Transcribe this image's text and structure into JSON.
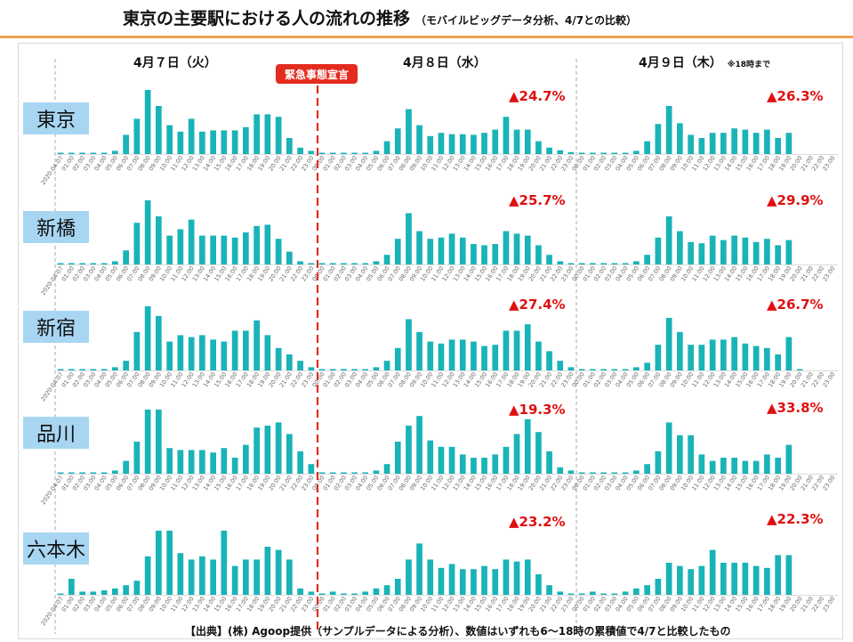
{
  "header": {
    "title": "東京の主要駅における人の流れの推移",
    "subtitle": "（モバイルビッグデータ分析、4/7との比較）"
  },
  "days": [
    {
      "label": "4月７日（火）",
      "note": ""
    },
    {
      "label": "4月８日（水）",
      "note": ""
    },
    {
      "label": "4月９日（木）",
      "note": "※18時まで"
    }
  ],
  "emergency_label": "緊急事態宣言",
  "source": "【出典】(株) Agoop提供（サンプルデータによる分析）、数値はいずれも6～18時の累積値で4/7と比較したもの",
  "colors": {
    "bar": "#19b3b8",
    "accent": "#e32b1e",
    "station_bg": "#a8d6f2"
  },
  "chart_data": {
    "type": "bar",
    "hours": [
      "00:00",
      "01:00",
      "02:00",
      "03:00",
      "04:00",
      "05:00",
      "06:00",
      "07:00",
      "08:00",
      "09:00",
      "10:00",
      "11:00",
      "12:00",
      "13:00",
      "14:00",
      "15:00",
      "16:00",
      "17:00",
      "18:00",
      "19:00",
      "20:00",
      "21:00",
      "22:00",
      "23:00"
    ],
    "first_tick": "2020-04-07",
    "stations": [
      {
        "name": "東京",
        "changes": [
          "",
          "▲24.7%",
          "▲26.3%"
        ],
        "series": [
          [
            1,
            1,
            1,
            1,
            2,
            5,
            30,
            55,
            100,
            75,
            45,
            35,
            55,
            35,
            37,
            37,
            37,
            42,
            62,
            62,
            58,
            25,
            10,
            5
          ],
          [
            1,
            1,
            1,
            1,
            2,
            5,
            20,
            40,
            70,
            45,
            28,
            33,
            31,
            31,
            30,
            33,
            38,
            58,
            38,
            38,
            20,
            10,
            6,
            3
          ],
          [
            1,
            1,
            1,
            1,
            2,
            5,
            20,
            47,
            75,
            48,
            30,
            25,
            33,
            33,
            40,
            38,
            33,
            38,
            25,
            33,
            null,
            null,
            null,
            null
          ]
        ]
      },
      {
        "name": "新橋",
        "changes": [
          "",
          "▲25.7%",
          "▲29.9%"
        ],
        "series": [
          [
            1,
            1,
            1,
            1,
            2,
            5,
            22,
            65,
            100,
            75,
            45,
            55,
            70,
            45,
            45,
            45,
            42,
            50,
            60,
            62,
            40,
            20,
            5,
            2
          ],
          [
            1,
            1,
            1,
            1,
            2,
            5,
            15,
            40,
            80,
            52,
            40,
            42,
            48,
            42,
            32,
            30,
            32,
            52,
            48,
            45,
            30,
            15,
            5,
            2
          ],
          [
            1,
            1,
            1,
            1,
            2,
            5,
            15,
            42,
            75,
            52,
            35,
            33,
            45,
            38,
            45,
            42,
            35,
            40,
            30,
            38,
            null,
            null,
            null,
            null
          ]
        ]
      },
      {
        "name": "新宿",
        "changes": [
          "",
          "▲27.4%",
          "▲26.7%"
        ],
        "series": [
          [
            1,
            1,
            1,
            1,
            2,
            5,
            15,
            60,
            100,
            85,
            45,
            55,
            52,
            55,
            48,
            45,
            62,
            62,
            78,
            55,
            35,
            25,
            15,
            5
          ],
          [
            1,
            1,
            1,
            1,
            2,
            5,
            15,
            35,
            80,
            60,
            45,
            42,
            48,
            48,
            45,
            38,
            40,
            62,
            62,
            72,
            45,
            30,
            15,
            5
          ],
          [
            1,
            1,
            1,
            1,
            2,
            5,
            12,
            40,
            82,
            60,
            40,
            40,
            48,
            48,
            52,
            42,
            38,
            35,
            25,
            52,
            2,
            null,
            null,
            null
          ]
        ]
      },
      {
        "name": "品川",
        "changes": [
          "",
          "▲19.3%",
          "▲33.8%"
        ],
        "series": [
          [
            1,
            1,
            1,
            1,
            2,
            5,
            20,
            50,
            100,
            100,
            40,
            37,
            37,
            37,
            33,
            40,
            25,
            45,
            72,
            75,
            80,
            62,
            35,
            15
          ],
          [
            1,
            1,
            1,
            1,
            2,
            5,
            15,
            50,
            75,
            90,
            52,
            42,
            42,
            30,
            25,
            25,
            30,
            42,
            62,
            85,
            65,
            35,
            10,
            5
          ],
          [
            1,
            1,
            1,
            1,
            2,
            5,
            15,
            35,
            80,
            60,
            60,
            30,
            20,
            25,
            25,
            20,
            20,
            30,
            25,
            45,
            null,
            null,
            null,
            null
          ]
        ]
      },
      {
        "name": "六本木",
        "changes": [
          "",
          "▲23.2%",
          "▲22.3%"
        ],
        "series": [
          [
            2,
            25,
            5,
            5,
            7,
            10,
            15,
            22,
            60,
            100,
            100,
            65,
            55,
            60,
            55,
            100,
            45,
            55,
            55,
            75,
            70,
            55,
            10,
            5
          ],
          [
            2,
            5,
            2,
            2,
            5,
            10,
            15,
            25,
            55,
            80,
            55,
            42,
            48,
            40,
            40,
            45,
            40,
            55,
            52,
            55,
            32,
            15,
            5,
            2
          ],
          [
            2,
            5,
            2,
            2,
            5,
            10,
            15,
            25,
            50,
            45,
            40,
            45,
            70,
            50,
            50,
            50,
            45,
            42,
            62,
            62,
            null,
            null,
            null,
            null
          ]
        ]
      }
    ]
  }
}
